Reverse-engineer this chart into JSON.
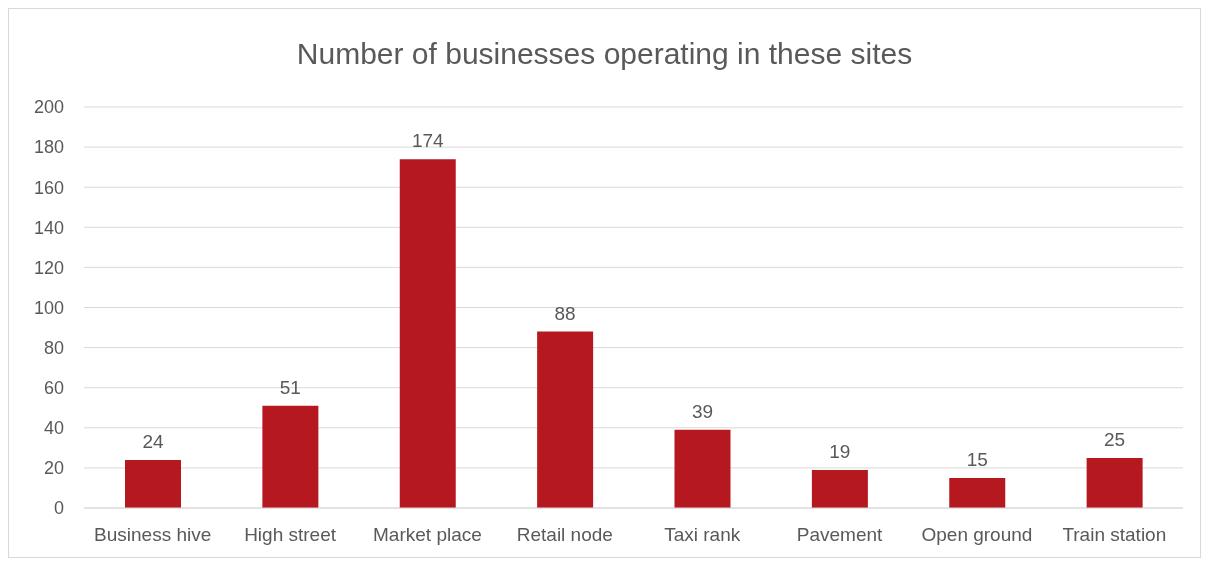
{
  "chart_data": {
    "type": "bar",
    "title": "Number of businesses operating in these sites",
    "categories": [
      "Business hive",
      "High street",
      "Market place",
      "Retail node",
      "Taxi rank",
      "Pavement",
      "Open ground",
      "Train station"
    ],
    "values": [
      24,
      51,
      174,
      88,
      39,
      19,
      15,
      25
    ],
    "color": "#b5191f",
    "ylim": [
      0,
      200
    ],
    "yticks": [
      0,
      20,
      40,
      60,
      80,
      100,
      120,
      140,
      160,
      180,
      200
    ],
    "grid": "y",
    "data_labels": true
  }
}
